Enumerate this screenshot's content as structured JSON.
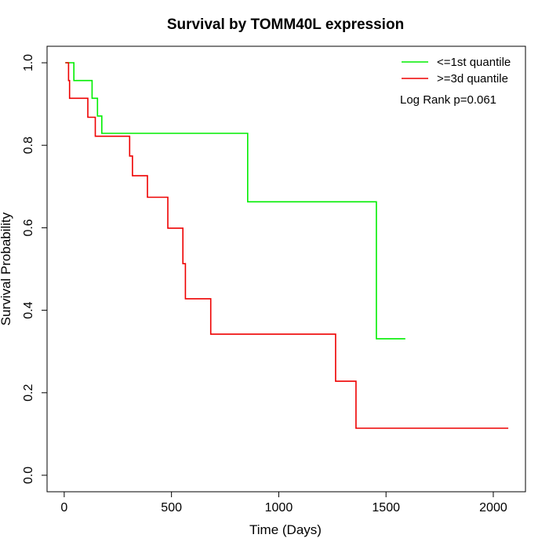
{
  "chart_data": {
    "type": "line",
    "subtype": "kaplan-meier-step",
    "title": "Survival by TOMM40L expression",
    "xlabel": "Time (Days)",
    "ylabel": "Survival Probability",
    "xlim": [
      -80,
      2150
    ],
    "ylim": [
      -0.04,
      1.04
    ],
    "x_ticks": [
      0,
      500,
      1000,
      1500,
      2000
    ],
    "x_tick_labels": [
      "0",
      "500",
      "1000",
      "1500",
      "2000"
    ],
    "y_ticks": [
      0.0,
      0.2,
      0.4,
      0.6,
      0.8,
      1.0
    ],
    "y_tick_labels": [
      "0.0",
      "0.2",
      "0.4",
      "0.6",
      "0.8",
      "1.0"
    ],
    "grid": false,
    "legend_position": "top-right",
    "annotation": "Log Rank p=0.061",
    "series": [
      {
        "name": "<=1st quantile",
        "color": "#00ee00",
        "points": [
          [
            5,
            1.0
          ],
          [
            45,
            1.0
          ],
          [
            45,
            0.957
          ],
          [
            130,
            0.957
          ],
          [
            130,
            0.914
          ],
          [
            155,
            0.914
          ],
          [
            155,
            0.871
          ],
          [
            175,
            0.871
          ],
          [
            175,
            0.829
          ],
          [
            855,
            0.829
          ],
          [
            855,
            0.663
          ],
          [
            1455,
            0.663
          ],
          [
            1455,
            0.331
          ],
          [
            1590,
            0.331
          ]
        ]
      },
      {
        "name": ">=3d quantile",
        "color": "#ee0000",
        "points": [
          [
            5,
            1.0
          ],
          [
            20,
            1.0
          ],
          [
            20,
            0.957
          ],
          [
            25,
            0.957
          ],
          [
            25,
            0.914
          ],
          [
            110,
            0.914
          ],
          [
            110,
            0.868
          ],
          [
            145,
            0.868
          ],
          [
            145,
            0.822
          ],
          [
            305,
            0.822
          ],
          [
            305,
            0.774
          ],
          [
            318,
            0.774
          ],
          [
            318,
            0.726
          ],
          [
            388,
            0.726
          ],
          [
            388,
            0.674
          ],
          [
            483,
            0.674
          ],
          [
            483,
            0.599
          ],
          [
            553,
            0.599
          ],
          [
            553,
            0.513
          ],
          [
            565,
            0.513
          ],
          [
            565,
            0.428
          ],
          [
            683,
            0.428
          ],
          [
            683,
            0.342
          ],
          [
            1265,
            0.342
          ],
          [
            1265,
            0.228
          ],
          [
            1360,
            0.228
          ],
          [
            1360,
            0.114
          ],
          [
            2070,
            0.114
          ]
        ]
      }
    ]
  }
}
